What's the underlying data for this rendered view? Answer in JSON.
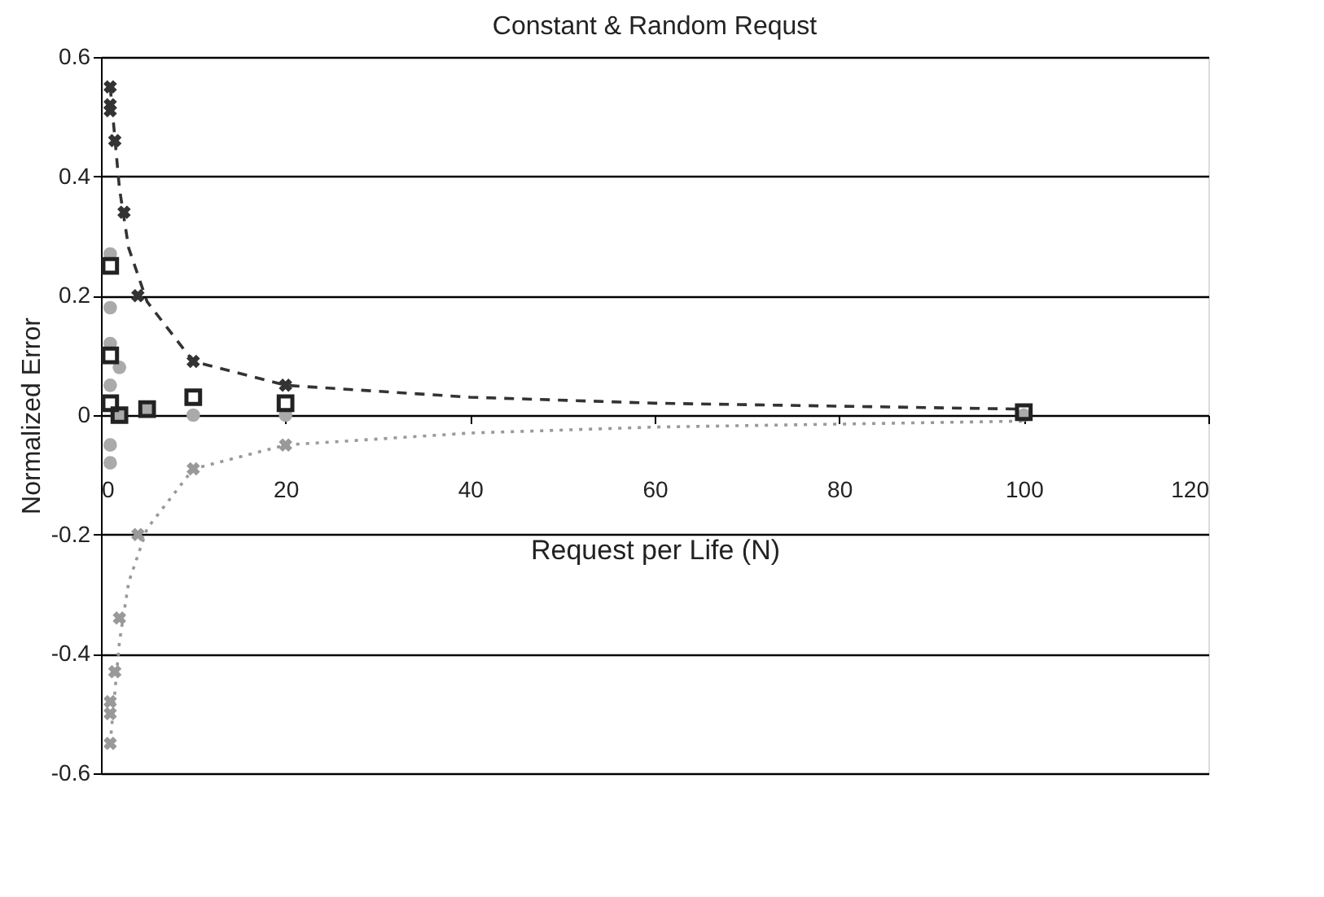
{
  "chart_data": {
    "type": "scatter",
    "title": "Constant & Random Requst",
    "xlabel": "Request per Life (N)",
    "ylabel": "Normalized Error",
    "xlim": [
      0,
      120
    ],
    "xticks": [
      0,
      20,
      40,
      60,
      80,
      100,
      120
    ],
    "ylim": [
      -0.6,
      0.6
    ],
    "yticks": [
      -0.6,
      -0.4,
      -0.2,
      0,
      0.2,
      0.4,
      0.6
    ],
    "grid": "y",
    "series": [
      {
        "type": "line",
        "line_style": "dashed",
        "color": "#333333",
        "x": [
          1,
          2,
          3,
          5,
          10,
          20,
          40,
          60,
          80,
          100
        ],
        "values": [
          0.55,
          0.38,
          0.28,
          0.19,
          0.09,
          0.05,
          0.03,
          0.02,
          0.015,
          0.01
        ]
      },
      {
        "type": "line",
        "line_style": "dotted",
        "color": "#999999",
        "x": [
          1,
          2,
          3,
          5,
          10,
          20,
          40,
          60,
          80,
          100
        ],
        "values": [
          -0.55,
          -0.38,
          -0.28,
          -0.19,
          -0.09,
          -0.05,
          -0.03,
          -0.02,
          -0.015,
          -0.01
        ]
      },
      {
        "marker": "cross",
        "color": "#333333",
        "x": [
          1,
          1,
          1,
          1.5,
          2.5,
          4,
          10,
          20
        ],
        "values": [
          0.55,
          0.52,
          0.51,
          0.46,
          0.34,
          0.2,
          0.09,
          0.05
        ]
      },
      {
        "marker": "cross",
        "color": "#999999",
        "x": [
          1,
          1,
          1,
          1.5,
          2,
          4,
          10,
          20
        ],
        "values": [
          -0.55,
          -0.5,
          -0.48,
          -0.43,
          -0.34,
          -0.2,
          -0.09,
          -0.05
        ]
      },
      {
        "marker": "circle",
        "color": "#aaaaaa",
        "x": [
          1,
          1,
          1,
          1,
          1,
          1,
          2,
          2,
          5,
          10,
          20,
          100
        ],
        "values": [
          0.27,
          0.18,
          0.12,
          0.05,
          -0.05,
          -0.08,
          0.08,
          0.0,
          0.01,
          0.0,
          0.0,
          0.0
        ]
      },
      {
        "marker": "square",
        "color": "#222222",
        "x": [
          1,
          1,
          1,
          2,
          5,
          10,
          20,
          100
        ],
        "values": [
          0.25,
          0.1,
          0.02,
          0.0,
          0.01,
          0.03,
          0.02,
          0.005
        ]
      }
    ]
  }
}
